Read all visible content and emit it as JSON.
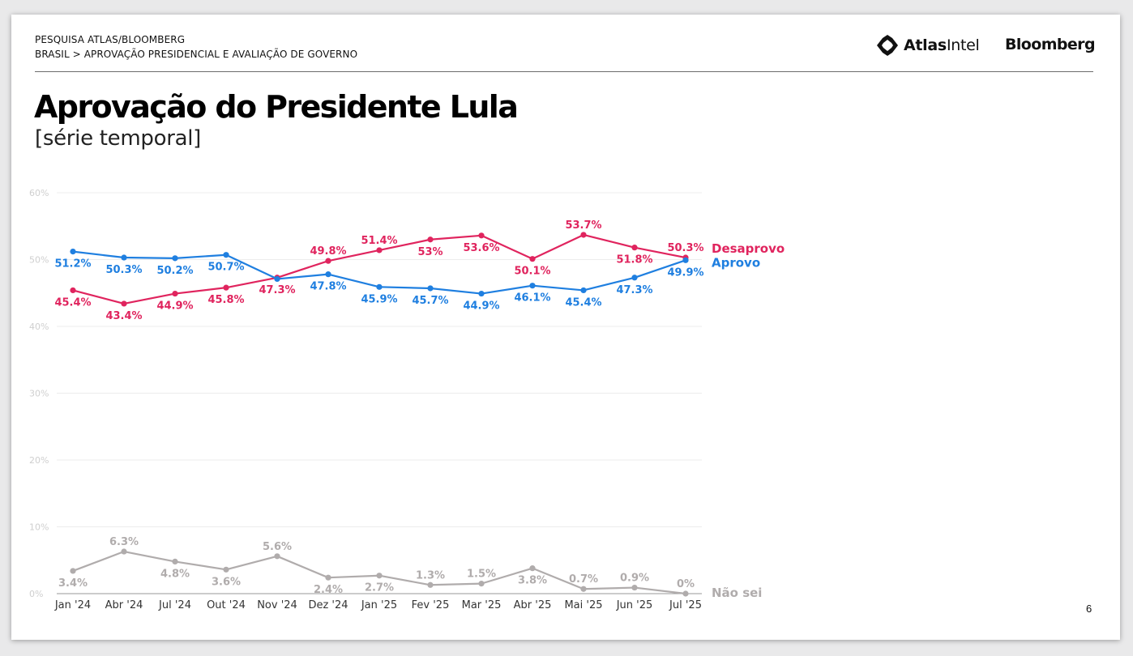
{
  "header": {
    "survey": "PESQUISA ATLAS/BLOOMBERG",
    "breadcrumb": "BRASIL > APROVAÇÃO PRESIDENCIAL E AVALIAÇÃO DE GOVERNO",
    "logo_atlas_bold": "Atlas",
    "logo_atlas_rest": "Intel",
    "logo_bloomberg": "Bloomberg"
  },
  "title": "Aprovação do Presidente Lula",
  "subtitle": "[série temporal]",
  "page_number": "6",
  "colors": {
    "desaprovo": "#e0245e",
    "aprovo": "#1f7fe0",
    "nao_sei": "#b0acac",
    "gridline": "#ececec",
    "tick": "#cfcfcf"
  },
  "chart_data": {
    "type": "line",
    "categories": [
      "Jan '24",
      "Abr '24",
      "Jul '24",
      "Out '24",
      "Nov '24",
      "Dez '24",
      "Jan '25",
      "Fev '25",
      "Mar '25",
      "Abr '25",
      "Mai '25",
      "Jun '25",
      "Jul '25"
    ],
    "ylim": [
      0,
      60
    ],
    "yticks": [
      0,
      10,
      20,
      30,
      40,
      50,
      60
    ],
    "ytick_labels": [
      "0%",
      "10%",
      "20%",
      "30%",
      "40%",
      "50%",
      "60%"
    ],
    "grid": true,
    "legend": "end-of-line labels",
    "series": [
      {
        "name": "Desaprovo",
        "color": "#e0245e",
        "values": [
          45.4,
          43.4,
          44.9,
          45.8,
          47.3,
          49.8,
          51.4,
          53,
          53.6,
          50.1,
          53.7,
          51.8,
          50.3
        ],
        "labels": [
          "45.4%",
          "43.4%",
          "44.9%",
          "45.8%",
          "47.3%",
          "49.8%",
          "51.4%",
          "53%",
          "53.6%",
          "50.1%",
          "53.7%",
          "51.8%",
          "50.3%"
        ]
      },
      {
        "name": "Aprovo",
        "color": "#1f7fe0",
        "values": [
          51.2,
          50.3,
          50.2,
          50.7,
          47.1,
          47.8,
          45.9,
          45.7,
          44.9,
          46.1,
          45.4,
          47.3,
          49.9
        ],
        "labels": [
          "51.2%",
          "50.3%",
          "50.2%",
          "50.7%",
          "",
          "47.8%",
          "45.9%",
          "45.7%",
          "44.9%",
          "46.1%",
          "45.4%",
          "47.3%",
          "49.9%"
        ]
      },
      {
        "name": "Não sei",
        "color": "#b0acac",
        "values": [
          3.4,
          6.3,
          4.8,
          3.6,
          5.6,
          2.4,
          2.7,
          1.3,
          1.5,
          3.8,
          0.7,
          0.9,
          0
        ],
        "labels": [
          "3.4%",
          "6.3%",
          "4.8%",
          "3.6%",
          "5.6%",
          "2.4%",
          "2.7%",
          "1.3%",
          "1.5%",
          "3.8%",
          "0.7%",
          "0.9%",
          "0%"
        ]
      }
    ]
  }
}
